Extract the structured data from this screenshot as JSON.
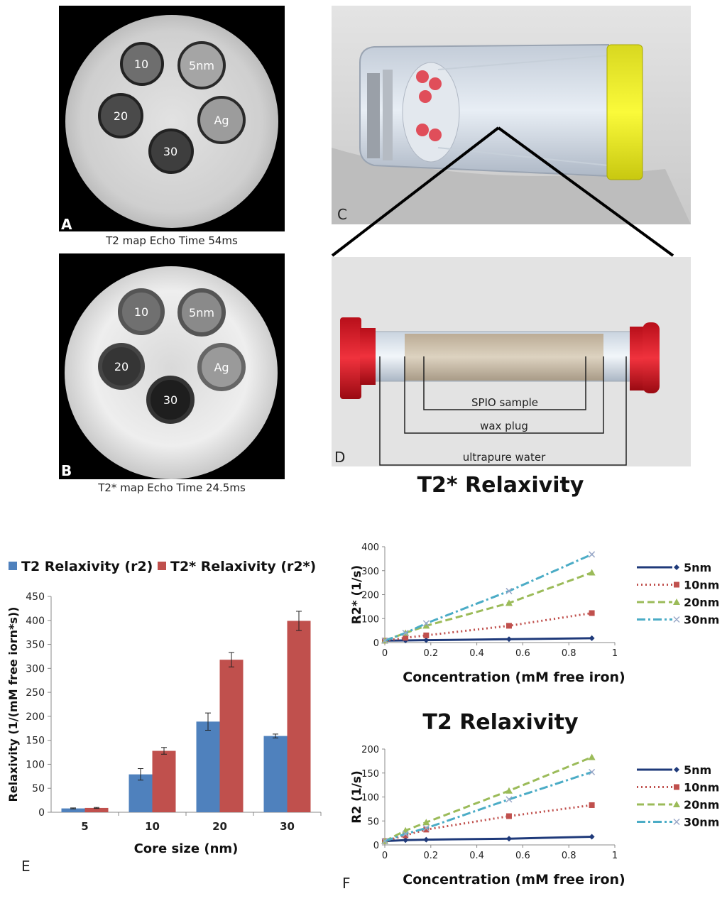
{
  "panels": {
    "a": {
      "letter": "A",
      "caption": "T2 map Echo Time 54ms",
      "wells": {
        "w10": "10",
        "w5": "5nm",
        "w20": "20",
        "wag": "Ag",
        "w30": "30"
      }
    },
    "b": {
      "letter": "B",
      "caption": "T2* map Echo Time 24.5ms",
      "wells": {
        "w10": "10",
        "w5": "5nm",
        "w20": "20",
        "wag": "Ag",
        "w30": "30"
      }
    },
    "c": {
      "letter": "C"
    },
    "d": {
      "letter": "D",
      "labels": {
        "spio": "SPIO sample",
        "wax": "wax plug",
        "water": "ultrapure water"
      }
    },
    "e": {
      "letter": "E"
    },
    "f": {
      "letter": "F"
    }
  },
  "colors": {
    "blue_bar": "#4f81bd",
    "red_bar": "#c0504d",
    "s5": "#1f3a7a",
    "s10": "#c0504d",
    "s20": "#9bbb59",
    "s30": "#4bacc6"
  },
  "chart_data": [
    {
      "type": "bar",
      "categories": [
        "5",
        "10",
        "20",
        "30"
      ],
      "series": [
        {
          "name": "T2 Relaxivity (r2)",
          "values": [
            8,
            79,
            189,
            159
          ],
          "errors": [
            1,
            12,
            18,
            4
          ]
        },
        {
          "name": "T2* Relaxivity (r2*)",
          "values": [
            9,
            128,
            318,
            399
          ],
          "errors": [
            1,
            7,
            15,
            20
          ]
        }
      ],
      "xlabel": "Core size (nm)",
      "ylabel": "Relaxivity (1/(mM free iorn*s))",
      "ylim": [
        0,
        450
      ],
      "yticks": [
        "0",
        "50",
        "100",
        "150",
        "200",
        "250",
        "300",
        "350",
        "400",
        "450"
      ],
      "legend": "top",
      "grid": false
    },
    {
      "type": "line",
      "title": "T2* Relaxivity",
      "xlabel": "Concentration (mM free iron)",
      "ylabel": "R2* (1/s)",
      "xlim": [
        0,
        1
      ],
      "ylim": [
        0,
        400
      ],
      "xticks": [
        "0",
        "0.2",
        "0.4",
        "0.6",
        "0.8",
        "1"
      ],
      "yticks": [
        "0",
        "100",
        "200",
        "300",
        "400"
      ],
      "x": [
        0,
        0.09,
        0.18,
        0.54,
        0.9
      ],
      "series": [
        {
          "name": "5nm",
          "values": [
            8,
            9,
            10,
            14,
            18
          ]
        },
        {
          "name": "10nm",
          "values": [
            8,
            20,
            30,
            70,
            123
          ]
        },
        {
          "name": "20nm",
          "values": [
            8,
            40,
            70,
            165,
            292
          ]
        },
        {
          "name": "30nm",
          "values": [
            8,
            40,
            80,
            215,
            368
          ]
        }
      ],
      "legend": "right",
      "grid": false
    },
    {
      "type": "line",
      "title": "T2 Relaxivity",
      "xlabel": "Concentration (mM free iron)",
      "ylabel": "R2 (1/s)",
      "xlim": [
        0,
        1
      ],
      "ylim": [
        0,
        200
      ],
      "xticks": [
        "0",
        "0.2",
        "0.4",
        "0.6",
        "0.8",
        "1"
      ],
      "yticks": [
        "0",
        "50",
        "100",
        "150",
        "200"
      ],
      "x": [
        0,
        0.09,
        0.18,
        0.54,
        0.9
      ],
      "series": [
        {
          "name": "5nm",
          "values": [
            8,
            10,
            11,
            13,
            17
          ]
        },
        {
          "name": "10nm",
          "values": [
            8,
            20,
            32,
            60,
            83
          ]
        },
        {
          "name": "20nm",
          "values": [
            8,
            30,
            47,
            113,
            183
          ]
        },
        {
          "name": "30nm",
          "values": [
            8,
            23,
            35,
            95,
            152
          ]
        }
      ],
      "legend": "right",
      "grid": false
    }
  ]
}
